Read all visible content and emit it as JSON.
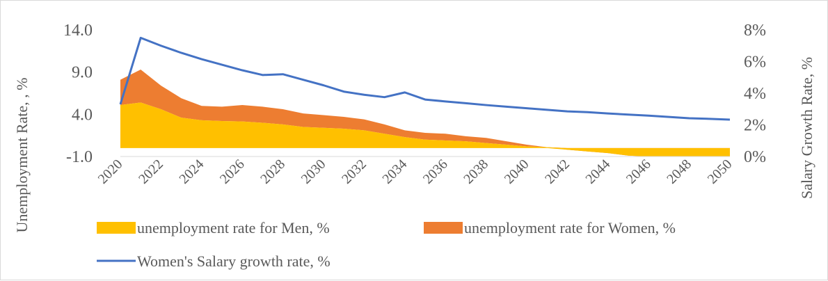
{
  "chart_data": {
    "type": "area",
    "title": "",
    "x": [
      2020,
      2021,
      2022,
      2023,
      2024,
      2025,
      2026,
      2027,
      2028,
      2029,
      2030,
      2031,
      2032,
      2033,
      2034,
      2035,
      2036,
      2037,
      2038,
      2039,
      2040,
      2041,
      2042,
      2043,
      2044,
      2045,
      2046,
      2047,
      2048,
      2049,
      2050
    ],
    "x_tick_labels": [
      "2020",
      "2022",
      "2024",
      "2026",
      "2028",
      "2030",
      "2032",
      "2034",
      "2036",
      "2038",
      "2040",
      "2042",
      "2044",
      "2046",
      "2048",
      "2050"
    ],
    "ylabel": "Unemployment Rate, , %",
    "y2label": "Salary Growth Rate, %",
    "y_tick_labels": [
      "14.0",
      "9.0",
      "4.0",
      "-1.0"
    ],
    "y2_tick_labels": [
      "8%",
      "6%",
      "4%",
      "2%",
      "0%"
    ],
    "ylim": [
      -1,
      14
    ],
    "y2lim": [
      0,
      8
    ],
    "grid": false,
    "legend_position": "bottom",
    "series": [
      {
        "name": "unemployment rate for Men, %",
        "kind": "area",
        "axis": "left",
        "color": "#FFC000",
        "values": [
          5.1,
          5.4,
          4.6,
          3.6,
          3.3,
          3.2,
          3.15,
          3.0,
          2.8,
          2.5,
          2.4,
          2.3,
          2.1,
          1.7,
          1.3,
          1.0,
          0.9,
          0.8,
          0.6,
          0.4,
          0.2,
          0.1,
          0,
          0,
          0,
          0,
          0,
          0,
          0,
          0,
          0
        ]
      },
      {
        "name": "unemployment rate for Women, %",
        "kind": "stacked-area",
        "axis": "left",
        "color": "#ED7D31",
        "values": [
          3.0,
          3.9,
          2.8,
          2.3,
          1.7,
          1.7,
          1.95,
          1.9,
          1.8,
          1.6,
          1.5,
          1.4,
          1.3,
          1.1,
          0.8,
          0.8,
          0.8,
          0.6,
          0.6,
          0.4,
          0.2,
          0.0,
          -0.2,
          -0.4,
          -0.6,
          -0.9,
          -1.0,
          -1.0,
          -1.0,
          -1.0,
          -1.0
        ]
      },
      {
        "name": "Women's Salary growth rate, %",
        "kind": "line",
        "axis": "right",
        "color": "#4472C4",
        "values": [
          3.3,
          7.5,
          7.0,
          6.55,
          6.15,
          5.8,
          5.45,
          5.15,
          5.2,
          4.85,
          4.5,
          4.1,
          3.9,
          3.75,
          4.05,
          3.6,
          3.48,
          3.37,
          3.25,
          3.15,
          3.05,
          2.95,
          2.85,
          2.8,
          2.72,
          2.65,
          2.58,
          2.5,
          2.42,
          2.38,
          2.33
        ]
      }
    ]
  }
}
